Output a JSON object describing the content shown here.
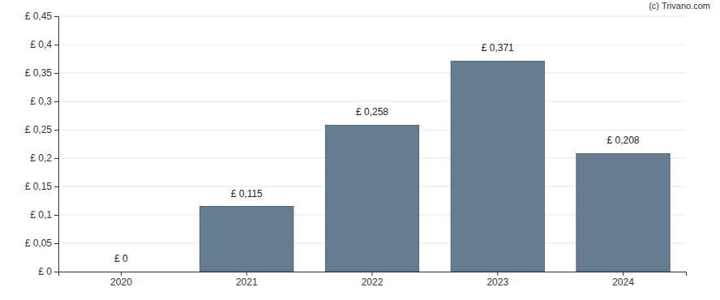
{
  "chart_data": {
    "type": "bar",
    "annotations": [
      "(c) Trivano.com"
    ],
    "categories": [
      "2020",
      "2021",
      "2022",
      "2023",
      "2024"
    ],
    "values": [
      0,
      0.115,
      0.258,
      0.371,
      0.208
    ],
    "value_labels": [
      "£ 0",
      "£ 0,115",
      "£ 0,258",
      "£ 0,371",
      "£ 0,208"
    ],
    "data_labels": true,
    "color": "#647d91",
    "ylim": [
      0,
      0.45
    ],
    "yticks": [
      {
        "value": 0,
        "label": "£ 0"
      },
      {
        "value": 0.05,
        "label": "£ 0,05"
      },
      {
        "value": 0.1,
        "label": "£ 0,1"
      },
      {
        "value": 0.15,
        "label": "£ 0,15"
      },
      {
        "value": 0.2,
        "label": "£ 0,2"
      },
      {
        "value": 0.25,
        "label": "£ 0,25"
      },
      {
        "value": 0.3,
        "label": "£ 0,3"
      },
      {
        "value": 0.35,
        "label": "£ 0,35"
      },
      {
        "value": 0.4,
        "label": "£ 0,4"
      },
      {
        "value": 0.45,
        "label": "£ 0,45"
      }
    ],
    "grid": true
  }
}
